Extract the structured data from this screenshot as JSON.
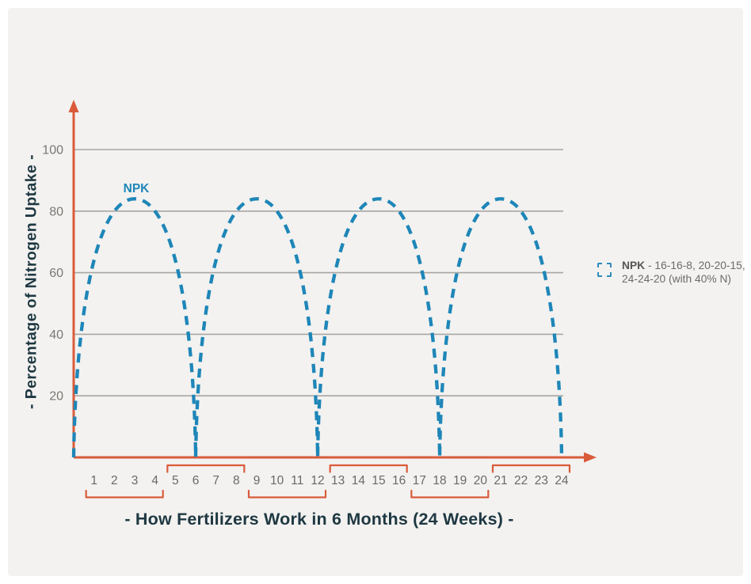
{
  "colors": {
    "outer_bg": "#ffffff",
    "panel_bg": "#f3f2f0",
    "axis": "#d95b3a",
    "grid": "#a8a6a3",
    "curve": "#1e86b8",
    "y_tick_text": "#797774",
    "x_tick_text": "#6b6966",
    "title_text": "#1e3842",
    "legend_text": "#6d6b69",
    "legend_bold_text": "#555557"
  },
  "chart_data": {
    "type": "line",
    "title": "- How Fertilizers Work in 6 Months (24 Weeks) -",
    "ylabel": "- Percentage of Nitrogen Uptake -",
    "xlabel": "",
    "xlim_weeks": [
      0,
      24
    ],
    "ylim": [
      0,
      110
    ],
    "x_ticks": [
      1,
      2,
      3,
      4,
      5,
      6,
      7,
      8,
      9,
      10,
      11,
      12,
      13,
      14,
      15,
      16,
      17,
      18,
      19,
      20,
      21,
      22,
      23,
      24
    ],
    "y_ticks": [
      20,
      40,
      60,
      80,
      100
    ],
    "grid": "horizontal",
    "curve_label": "NPK",
    "series": [
      {
        "name": "NPK",
        "style": "dashed",
        "color": "#1e86b8",
        "arch_zero_weeks": [
          0,
          6,
          12,
          18,
          24
        ],
        "arch_peak_weeks": [
          3,
          9,
          15,
          21
        ],
        "peak_value_pct": 84,
        "trough_value_pct": 0
      }
    ],
    "bracket_groups_below": [
      [
        1,
        4
      ],
      [
        9,
        12
      ],
      [
        17,
        20
      ]
    ],
    "bracket_groups_above": [
      [
        5,
        8
      ],
      [
        13,
        16
      ],
      [
        21,
        24
      ]
    ],
    "legend": {
      "position": "right",
      "swatch": "dashed-square",
      "label_bold": "NPK",
      "label_rest": " - 16-16-8, 20-20-15, 24-24-20 (with 40% N)"
    }
  }
}
